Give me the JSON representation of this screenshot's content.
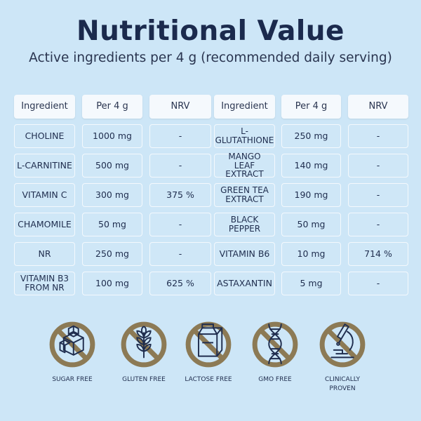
{
  "title": "Nutritional Value",
  "subtitle": "Active ingredients per 4 g (recommended daily serving)",
  "table": {
    "headers": [
      "Ingredient",
      "Per 4 g",
      "NRV",
      "Ingredient",
      "Per 4 g",
      "NRV"
    ],
    "left_rows": [
      {
        "ingredient": "CHOLINE",
        "amount": "1000 mg",
        "nrv": "-"
      },
      {
        "ingredient": "L-CARNITINE",
        "amount": "500 mg",
        "nrv": "-"
      },
      {
        "ingredient": "VITAMIN C",
        "amount": "300 mg",
        "nrv": "375 %"
      },
      {
        "ingredient": "CHAMOMILE",
        "amount": "50 mg",
        "nrv": "-"
      },
      {
        "ingredient": "NR",
        "amount": "250 mg",
        "nrv": "-"
      },
      {
        "ingredient": "VITAMIN B3 FROM NR",
        "amount": "100 mg",
        "nrv": "625 %"
      }
    ],
    "right_rows": [
      {
        "ingredient": "L-GLUTATHIONE",
        "amount": "250 mg",
        "nrv": "-"
      },
      {
        "ingredient": "MANGO LEAF EXTRACT",
        "amount": "140 mg",
        "nrv": "-"
      },
      {
        "ingredient": "GREEN TEA EXTRACT",
        "amount": "190 mg",
        "nrv": "-"
      },
      {
        "ingredient": "BLACK PEPPER",
        "amount": "50 mg",
        "nrv": "-"
      },
      {
        "ingredient": "VITAMIN B6",
        "amount": "10 mg",
        "nrv": "714 %"
      },
      {
        "ingredient": "ASTAXANTIN",
        "amount": "5 mg",
        "nrv": "-"
      }
    ]
  },
  "badges": [
    {
      "label": "SUGAR FREE",
      "icon": "sugar-cubes-icon"
    },
    {
      "label": "GLUTEN FREE",
      "icon": "wheat-icon"
    },
    {
      "label": "LACTOSE FREE",
      "icon": "milk-carton-icon"
    },
    {
      "label": "GMO FREE",
      "icon": "dna-icon"
    },
    {
      "label": "CLINICALLY PROVEN",
      "icon": "microscope-icon"
    }
  ],
  "colors": {
    "background": "#cde6f7",
    "title": "#1b2a4d",
    "prohibition_ring": "#8c7a55",
    "icon_stroke": "#1f2d4e"
  }
}
